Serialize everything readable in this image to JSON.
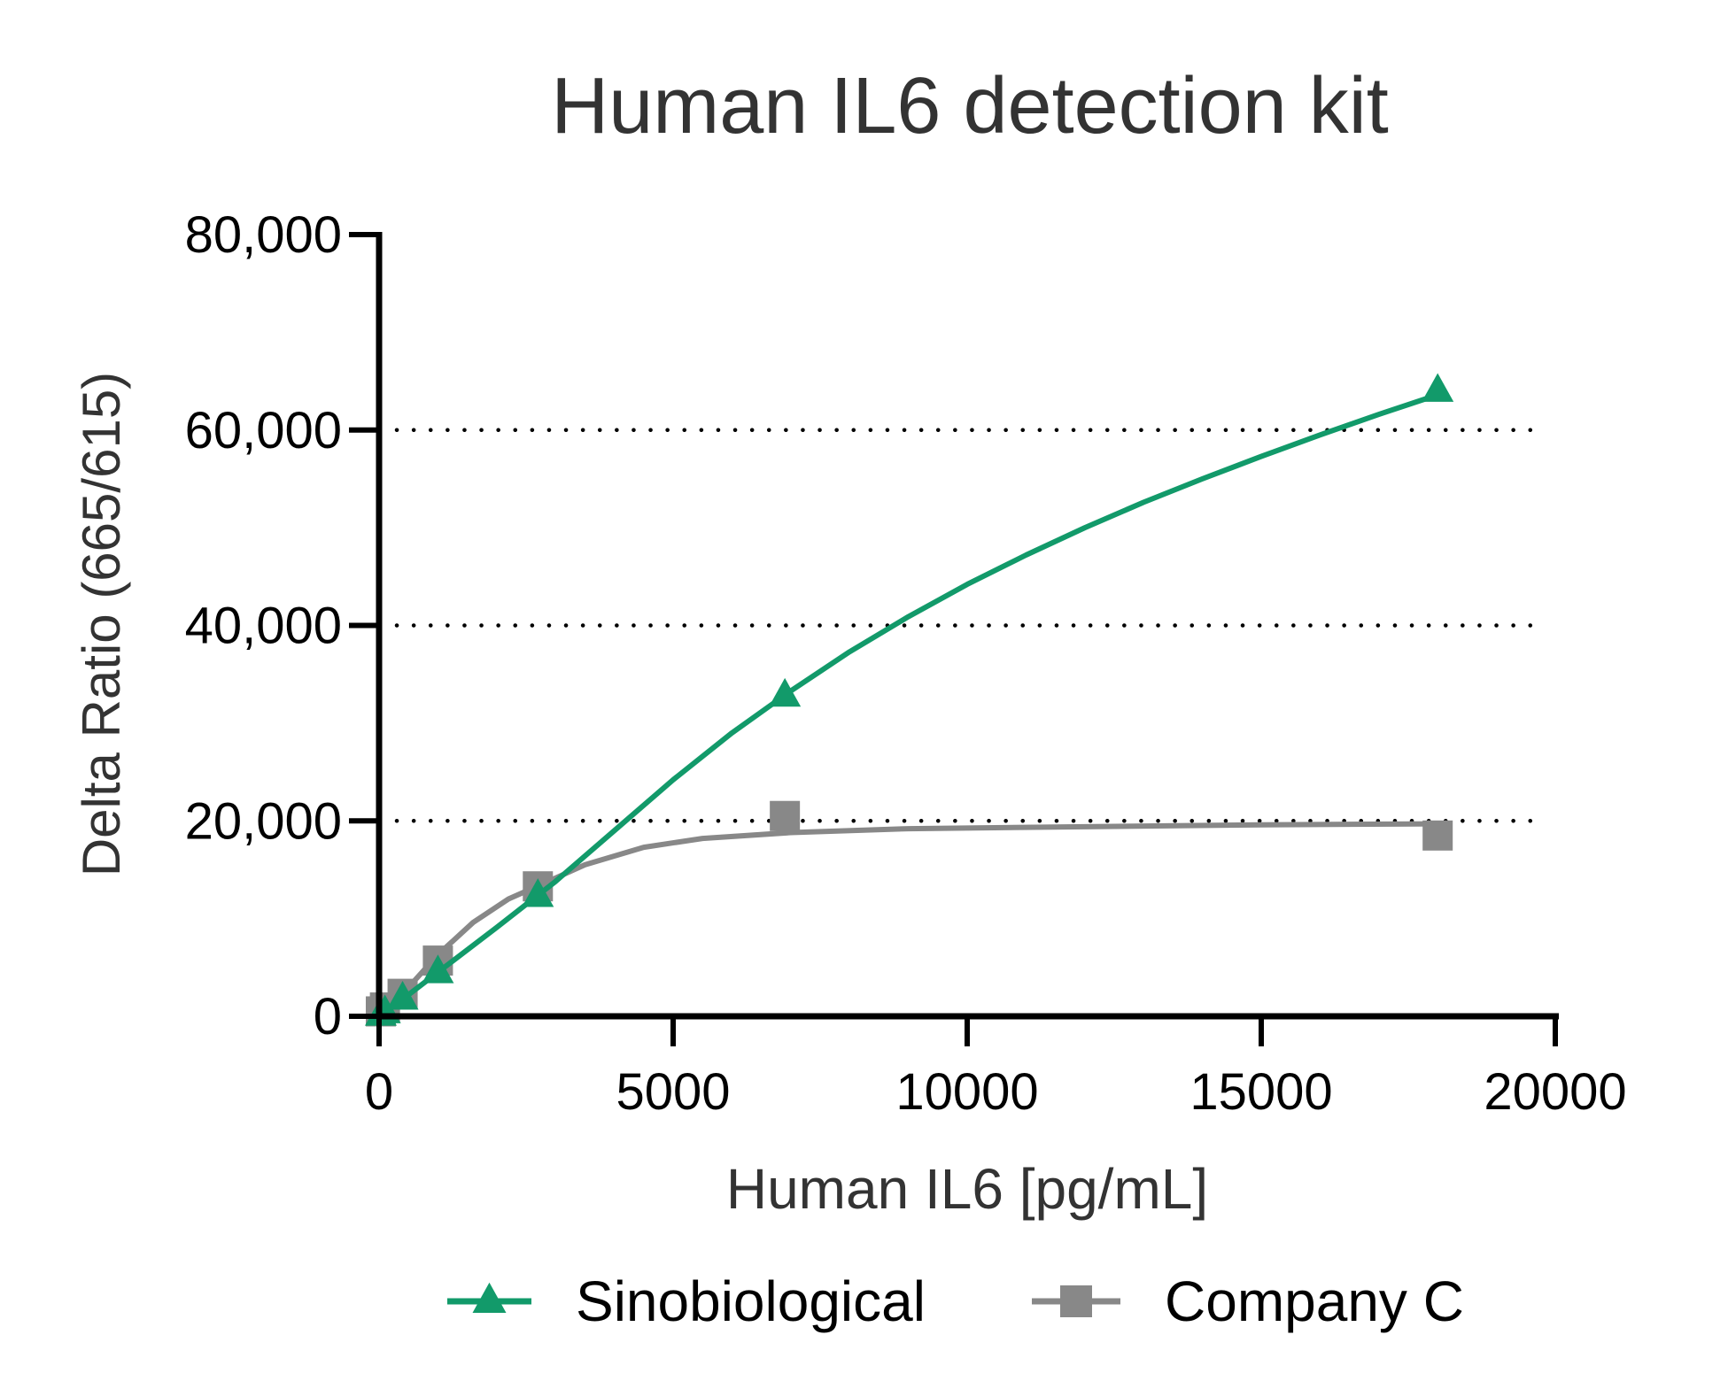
{
  "chart_data": {
    "type": "line",
    "title": "Human IL6 detection kit",
    "xlabel": "Human IL6  [pg/mL]",
    "ylabel": "Delta Ratio (665/615)",
    "xlim": [
      0,
      20000
    ],
    "ylim": [
      0,
      80000
    ],
    "x_ticks": [
      {
        "value": 0,
        "label": "0"
      },
      {
        "value": 5000,
        "label": "5000"
      },
      {
        "value": 10000,
        "label": "10000"
      },
      {
        "value": 15000,
        "label": "15000"
      },
      {
        "value": 20000,
        "label": "20000"
      }
    ],
    "y_ticks": [
      {
        "value": 0,
        "label": "0"
      },
      {
        "value": 20000,
        "label": "20,000"
      },
      {
        "value": 40000,
        "label": "40,000"
      },
      {
        "value": 60000,
        "label": "60,000"
      },
      {
        "value": 80000,
        "label": "80,000"
      }
    ],
    "grid": {
      "y_dotted_at": [
        20000,
        40000,
        60000
      ]
    },
    "legend_position": "bottom",
    "series": [
      {
        "name": "Sinobiological",
        "color": "#129a6a",
        "marker": "triangle",
        "points": [
          {
            "x": 30,
            "y": 150
          },
          {
            "x": 100,
            "y": 400
          },
          {
            "x": 400,
            "y": 1800
          },
          {
            "x": 1000,
            "y": 4500
          },
          {
            "x": 2700,
            "y": 12300
          },
          {
            "x": 6900,
            "y": 32800
          },
          {
            "x": 18000,
            "y": 64000
          }
        ],
        "curve": [
          {
            "x": 0,
            "y": 0
          },
          {
            "x": 500,
            "y": 2200
          },
          {
            "x": 1000,
            "y": 4500
          },
          {
            "x": 2000,
            "y": 9100
          },
          {
            "x": 3000,
            "y": 13800
          },
          {
            "x": 4000,
            "y": 19000
          },
          {
            "x": 5000,
            "y": 24200
          },
          {
            "x": 6000,
            "y": 29000
          },
          {
            "x": 7000,
            "y": 33300
          },
          {
            "x": 8000,
            "y": 37300
          },
          {
            "x": 9000,
            "y": 40900
          },
          {
            "x": 10000,
            "y": 44200
          },
          {
            "x": 11000,
            "y": 47200
          },
          {
            "x": 12000,
            "y": 50000
          },
          {
            "x": 13000,
            "y": 52600
          },
          {
            "x": 14000,
            "y": 55000
          },
          {
            "x": 15000,
            "y": 57300
          },
          {
            "x": 16000,
            "y": 59500
          },
          {
            "x": 17000,
            "y": 61600
          },
          {
            "x": 18000,
            "y": 63600
          }
        ]
      },
      {
        "name": "Company C",
        "color": "#888888",
        "marker": "square",
        "points": [
          {
            "x": 30,
            "y": 500
          },
          {
            "x": 100,
            "y": 900
          },
          {
            "x": 400,
            "y": 2300
          },
          {
            "x": 1000,
            "y": 5700
          },
          {
            "x": 2700,
            "y": 13300
          },
          {
            "x": 6900,
            "y": 20500
          },
          {
            "x": 18000,
            "y": 18500
          }
        ],
        "curve": [
          {
            "x": 0,
            "y": 0
          },
          {
            "x": 400,
            "y": 2300
          },
          {
            "x": 1000,
            "y": 6300
          },
          {
            "x": 1600,
            "y": 9600
          },
          {
            "x": 2200,
            "y": 12000
          },
          {
            "x": 2800,
            "y": 13600
          },
          {
            "x": 3500,
            "y": 15500
          },
          {
            "x": 4500,
            "y": 17300
          },
          {
            "x": 5500,
            "y": 18200
          },
          {
            "x": 7000,
            "y": 18800
          },
          {
            "x": 9000,
            "y": 19200
          },
          {
            "x": 12000,
            "y": 19400
          },
          {
            "x": 15000,
            "y": 19600
          },
          {
            "x": 18000,
            "y": 19700
          }
        ]
      }
    ]
  }
}
